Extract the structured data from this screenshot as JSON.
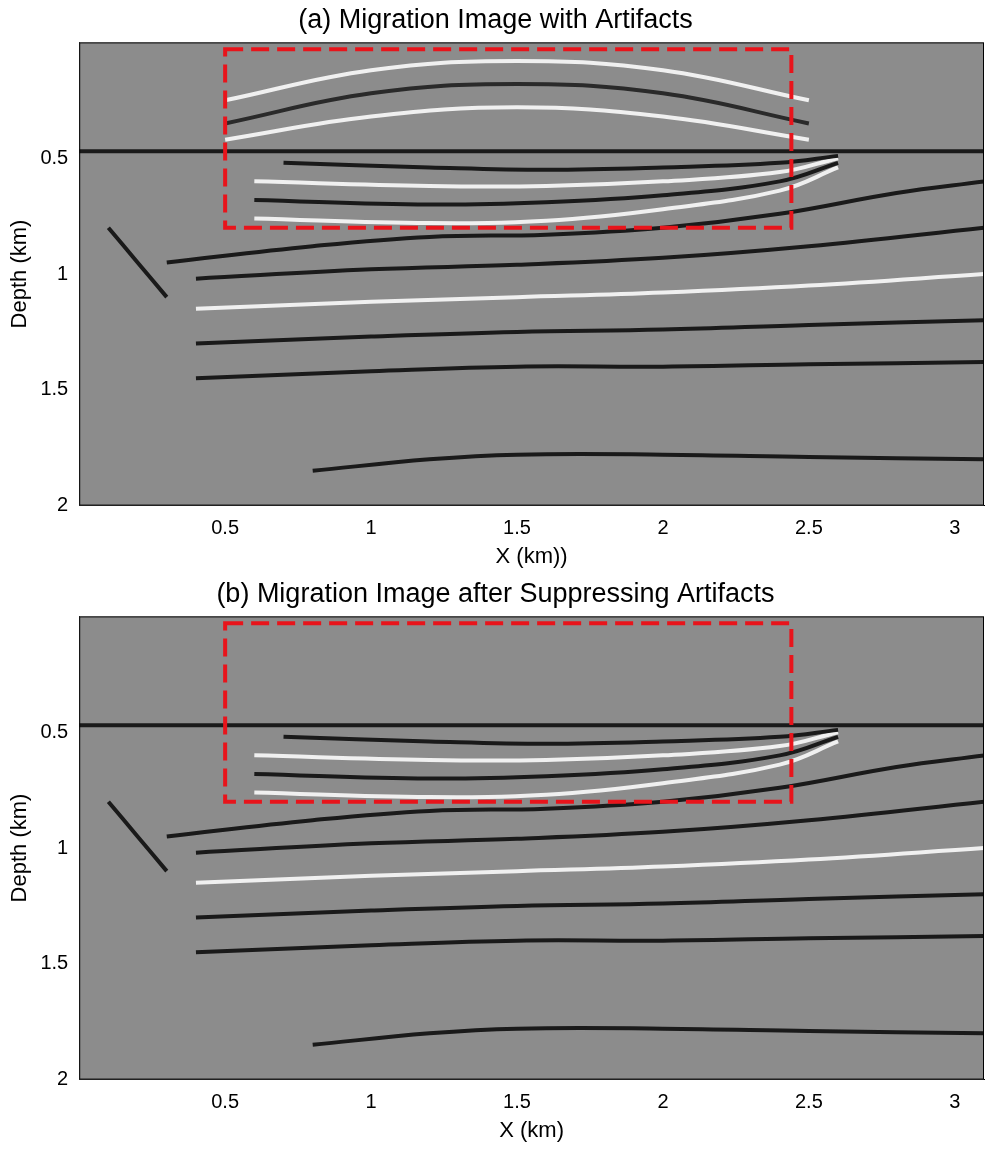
{
  "chart_data": [
    {
      "type": "line",
      "title": "(a) Migration Image with Artifacts",
      "x_label": "X (km))",
      "y_label": "Depth (km)",
      "xlim": [
        0,
        3.1
      ],
      "xticks": [
        0.5,
        1,
        1.5,
        2,
        2.5,
        3
      ],
      "ylim": [
        0,
        2
      ],
      "yticks": [
        0.5,
        1,
        1.5,
        2
      ],
      "grid": false,
      "box": {
        "x": [
          0.5,
          2.44
        ],
        "y": [
          0.03,
          0.8
        ],
        "color": "#e8141b",
        "line_style": "dashed"
      },
      "series": [
        {
          "color": "#f0f0f0",
          "x": [
            0.5,
            1,
            1.5,
            2,
            2.5
          ],
          "values": [
            0.25,
            0.12,
            0.08,
            0.12,
            0.25
          ]
        },
        {
          "color": "#2a2a2a",
          "x": [
            0.5,
            1,
            1.5,
            2,
            2.5
          ],
          "values": [
            0.35,
            0.22,
            0.18,
            0.22,
            0.35
          ]
        },
        {
          "color": "#f0f0f0",
          "x": [
            0.5,
            1,
            1.5,
            2,
            2.5
          ],
          "values": [
            0.42,
            0.32,
            0.28,
            0.32,
            0.42
          ]
        },
        {
          "color": "#1a1a1a",
          "x": [
            0,
            3.1
          ],
          "values": [
            0.47,
            0.47
          ]
        },
        {
          "color": "#1a1a1a",
          "x": [
            0.7,
            1.2,
            1.6,
            2.0,
            2.4,
            2.6
          ],
          "values": [
            0.52,
            0.54,
            0.55,
            0.54,
            0.52,
            0.49
          ]
        },
        {
          "color": "#f0f0f0",
          "x": [
            0.6,
            1.2,
            1.6,
            2.0,
            2.4,
            2.6
          ],
          "values": [
            0.6,
            0.62,
            0.62,
            0.6,
            0.56,
            0.5
          ]
        },
        {
          "color": "#1a1a1a",
          "x": [
            0.6,
            1.2,
            1.6,
            2.0,
            2.4,
            2.6
          ],
          "values": [
            0.68,
            0.7,
            0.69,
            0.66,
            0.6,
            0.52
          ]
        },
        {
          "color": "#f0f0f0",
          "x": [
            0.6,
            1.2,
            1.6,
            2.0,
            2.4,
            2.6
          ],
          "values": [
            0.76,
            0.78,
            0.77,
            0.72,
            0.64,
            0.54
          ]
        },
        {
          "color": "#1a1a1a",
          "x": [
            0.3,
            0.8,
            1.2,
            1.6,
            2.0,
            2.4,
            2.8,
            3.1
          ],
          "values": [
            0.95,
            0.88,
            0.84,
            0.83,
            0.8,
            0.74,
            0.65,
            0.6
          ]
        },
        {
          "color": "#1a1a1a",
          "x": [
            0.1,
            0.2,
            0.3
          ],
          "values": [
            0.8,
            0.95,
            1.1
          ]
        },
        {
          "color": "#1a1a1a",
          "x": [
            0.4,
            1,
            1.5,
            2,
            2.5,
            3.1
          ],
          "values": [
            1.02,
            0.98,
            0.96,
            0.93,
            0.88,
            0.8
          ]
        },
        {
          "color": "#f0f0f0",
          "x": [
            0.4,
            1,
            1.5,
            2,
            2.5,
            3.1
          ],
          "values": [
            1.15,
            1.12,
            1.1,
            1.08,
            1.05,
            1.0
          ]
        },
        {
          "color": "#1a1a1a",
          "x": [
            0.4,
            1,
            1.5,
            2,
            2.5,
            3.1
          ],
          "values": [
            1.3,
            1.27,
            1.25,
            1.24,
            1.22,
            1.2
          ]
        },
        {
          "color": "#1a1a1a",
          "x": [
            0.4,
            1,
            1.5,
            2,
            2.5,
            3.1
          ],
          "values": [
            1.45,
            1.42,
            1.4,
            1.4,
            1.39,
            1.38
          ]
        },
        {
          "color": "#1a1a1a",
          "x": [
            0.8,
            1.2,
            1.5,
            2,
            2.5,
            3.1
          ],
          "values": [
            1.85,
            1.8,
            1.78,
            1.78,
            1.79,
            1.8
          ]
        }
      ]
    },
    {
      "type": "line",
      "title": "(b) Migration Image after Suppressing Artifacts",
      "x_label": "X (km)",
      "y_label": "Depth (km)",
      "xlim": [
        0,
        3.1
      ],
      "xticks": [
        0.5,
        1,
        1.5,
        2,
        2.5,
        3
      ],
      "ylim": [
        0,
        2
      ],
      "yticks": [
        0.5,
        1,
        1.5,
        2
      ],
      "grid": false,
      "box": {
        "x": [
          0.5,
          2.44
        ],
        "y": [
          0.03,
          0.8
        ],
        "color": "#e8141b",
        "line_style": "dashed"
      },
      "series": [
        {
          "color": "#1a1a1a",
          "x": [
            0,
            3.1
          ],
          "values": [
            0.47,
            0.47
          ]
        },
        {
          "color": "#1a1a1a",
          "x": [
            0.7,
            1.2,
            1.6,
            2.0,
            2.4,
            2.6
          ],
          "values": [
            0.52,
            0.54,
            0.55,
            0.54,
            0.52,
            0.49
          ]
        },
        {
          "color": "#f0f0f0",
          "x": [
            0.6,
            1.2,
            1.6,
            2.0,
            2.4,
            2.6
          ],
          "values": [
            0.6,
            0.62,
            0.62,
            0.6,
            0.56,
            0.5
          ]
        },
        {
          "color": "#1a1a1a",
          "x": [
            0.6,
            1.2,
            1.6,
            2.0,
            2.4,
            2.6
          ],
          "values": [
            0.68,
            0.7,
            0.69,
            0.66,
            0.6,
            0.52
          ]
        },
        {
          "color": "#f0f0f0",
          "x": [
            0.6,
            1.2,
            1.6,
            2.0,
            2.4,
            2.6
          ],
          "values": [
            0.76,
            0.78,
            0.77,
            0.72,
            0.64,
            0.54
          ]
        },
        {
          "color": "#1a1a1a",
          "x": [
            0.3,
            0.8,
            1.2,
            1.6,
            2.0,
            2.4,
            2.8,
            3.1
          ],
          "values": [
            0.95,
            0.88,
            0.84,
            0.83,
            0.8,
            0.74,
            0.65,
            0.6
          ]
        },
        {
          "color": "#1a1a1a",
          "x": [
            0.1,
            0.2,
            0.3
          ],
          "values": [
            0.8,
            0.95,
            1.1
          ]
        },
        {
          "color": "#1a1a1a",
          "x": [
            0.4,
            1,
            1.5,
            2,
            2.5,
            3.1
          ],
          "values": [
            1.02,
            0.98,
            0.96,
            0.93,
            0.88,
            0.8
          ]
        },
        {
          "color": "#f0f0f0",
          "x": [
            0.4,
            1,
            1.5,
            2,
            2.5,
            3.1
          ],
          "values": [
            1.15,
            1.12,
            1.1,
            1.08,
            1.05,
            1.0
          ]
        },
        {
          "color": "#1a1a1a",
          "x": [
            0.4,
            1,
            1.5,
            2,
            2.5,
            3.1
          ],
          "values": [
            1.3,
            1.27,
            1.25,
            1.24,
            1.22,
            1.2
          ]
        },
        {
          "color": "#1a1a1a",
          "x": [
            0.4,
            1,
            1.5,
            2,
            2.5,
            3.1
          ],
          "values": [
            1.45,
            1.42,
            1.4,
            1.4,
            1.39,
            1.38
          ]
        },
        {
          "color": "#1a1a1a",
          "x": [
            0.8,
            1.2,
            1.5,
            2,
            2.5,
            3.1
          ],
          "values": [
            1.85,
            1.8,
            1.78,
            1.78,
            1.79,
            1.8
          ]
        }
      ]
    }
  ]
}
